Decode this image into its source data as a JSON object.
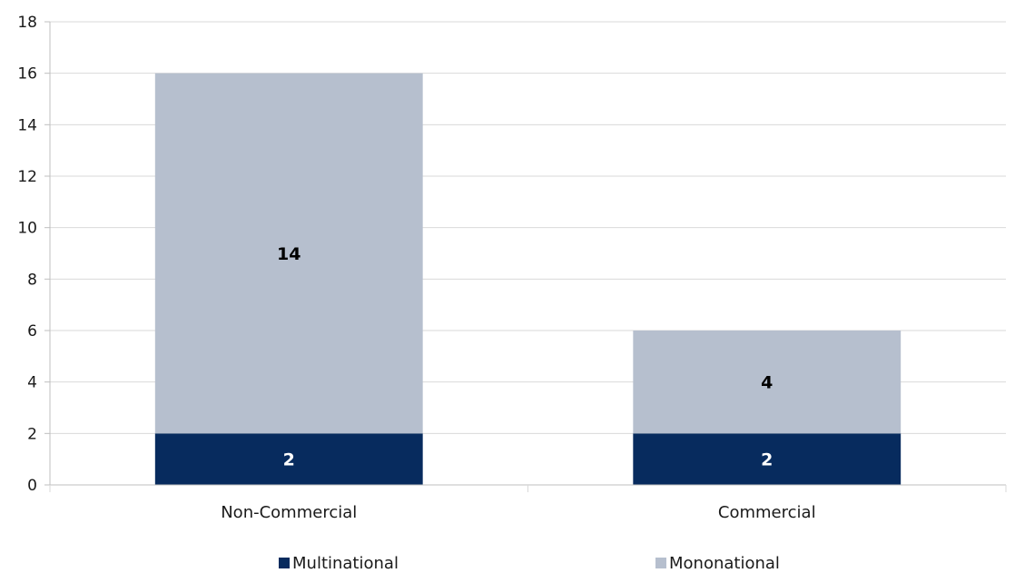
{
  "chart_data": {
    "type": "bar",
    "stacked": true,
    "categories": [
      "Non-Commercial",
      "Commercial"
    ],
    "series": [
      {
        "name": "Multinational",
        "values": [
          2,
          2
        ],
        "color": "#072B5E",
        "label_color": "#ffffff"
      },
      {
        "name": "Mononational",
        "values": [
          14,
          4
        ],
        "color": "#B6BFCE",
        "label_color": "#000000"
      }
    ],
    "ylim": [
      0,
      18
    ],
    "yticks": [
      0,
      2,
      4,
      6,
      8,
      10,
      12,
      14,
      16,
      18
    ],
    "grid": true,
    "legend_position": "bottom",
    "title": "",
    "xlabel": "",
    "ylabel": ""
  }
}
